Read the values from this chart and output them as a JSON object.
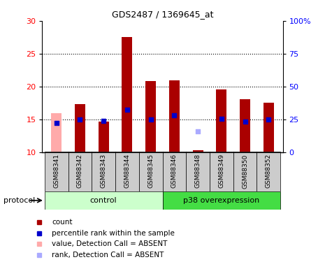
{
  "title": "GDS2487 / 1369645_at",
  "samples": [
    "GSM88341",
    "GSM88342",
    "GSM88343",
    "GSM88344",
    "GSM88345",
    "GSM88346",
    "GSM88348",
    "GSM88349",
    "GSM88350",
    "GSM88352"
  ],
  "count_values": [
    15.9,
    17.3,
    14.6,
    27.5,
    20.8,
    20.9,
    10.3,
    19.5,
    18.1,
    17.5
  ],
  "rank_values": [
    14.4,
    15.0,
    14.7,
    16.5,
    15.0,
    15.6,
    13.2,
    15.1,
    14.6,
    15.0
  ],
  "absent_count_indices": [
    0
  ],
  "absent_rank_indices": [
    6
  ],
  "ylim_left": [
    10,
    30
  ],
  "ylim_right": [
    0,
    100
  ],
  "yticks_left": [
    10,
    15,
    20,
    25,
    30
  ],
  "yticks_right": [
    0,
    25,
    50,
    75,
    100
  ],
  "yticklabels_right": [
    "0",
    "25",
    "50",
    "75",
    "100%"
  ],
  "hlines": [
    15,
    20,
    25
  ],
  "bar_color": "#aa0000",
  "absent_bar_color": "#ffaaaa",
  "rank_color": "#0000cc",
  "absent_rank_color": "#aaaaff",
  "bg_color": "#cccccc",
  "control_color": "#ccffcc",
  "p38_color": "#44dd44",
  "bar_width": 0.45,
  "rank_marker_size": 25,
  "n_control": 5,
  "n_p38": 5
}
